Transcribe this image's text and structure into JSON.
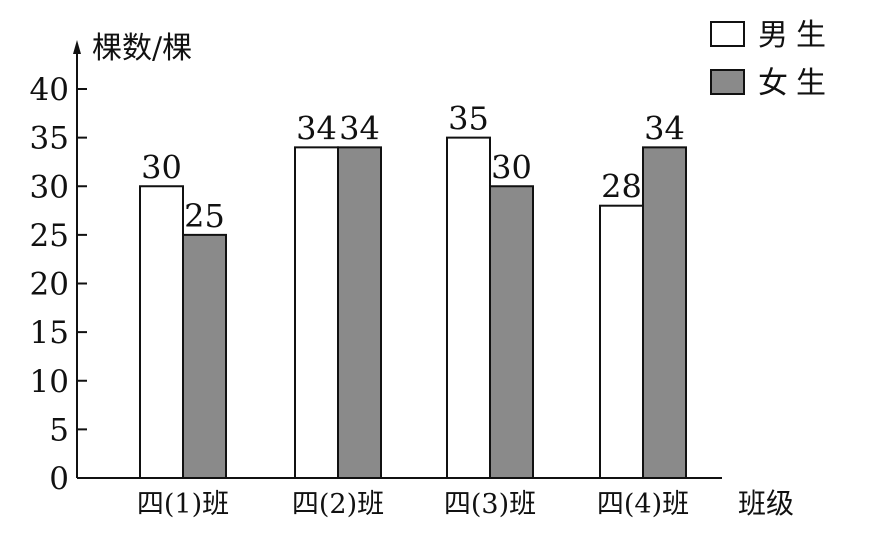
{
  "chart_data": {
    "type": "bar",
    "ylabel": "棵数/棵",
    "xlabel": "班级",
    "categories": [
      "四(1)班",
      "四(2)班",
      "四(3)班",
      "四(4)班"
    ],
    "series": [
      {
        "name": "男生",
        "values": [
          30,
          34,
          35,
          28
        ],
        "color": "#ffffff"
      },
      {
        "name": "女生",
        "values": [
          25,
          34,
          30,
          34
        ],
        "color": "#8a8a8a"
      }
    ],
    "ylim": [
      0,
      40
    ],
    "yticks": [
      0,
      5,
      10,
      15,
      20,
      25,
      30,
      35,
      40
    ],
    "grid": false,
    "legend_position": "top-right",
    "data_labels": true
  }
}
